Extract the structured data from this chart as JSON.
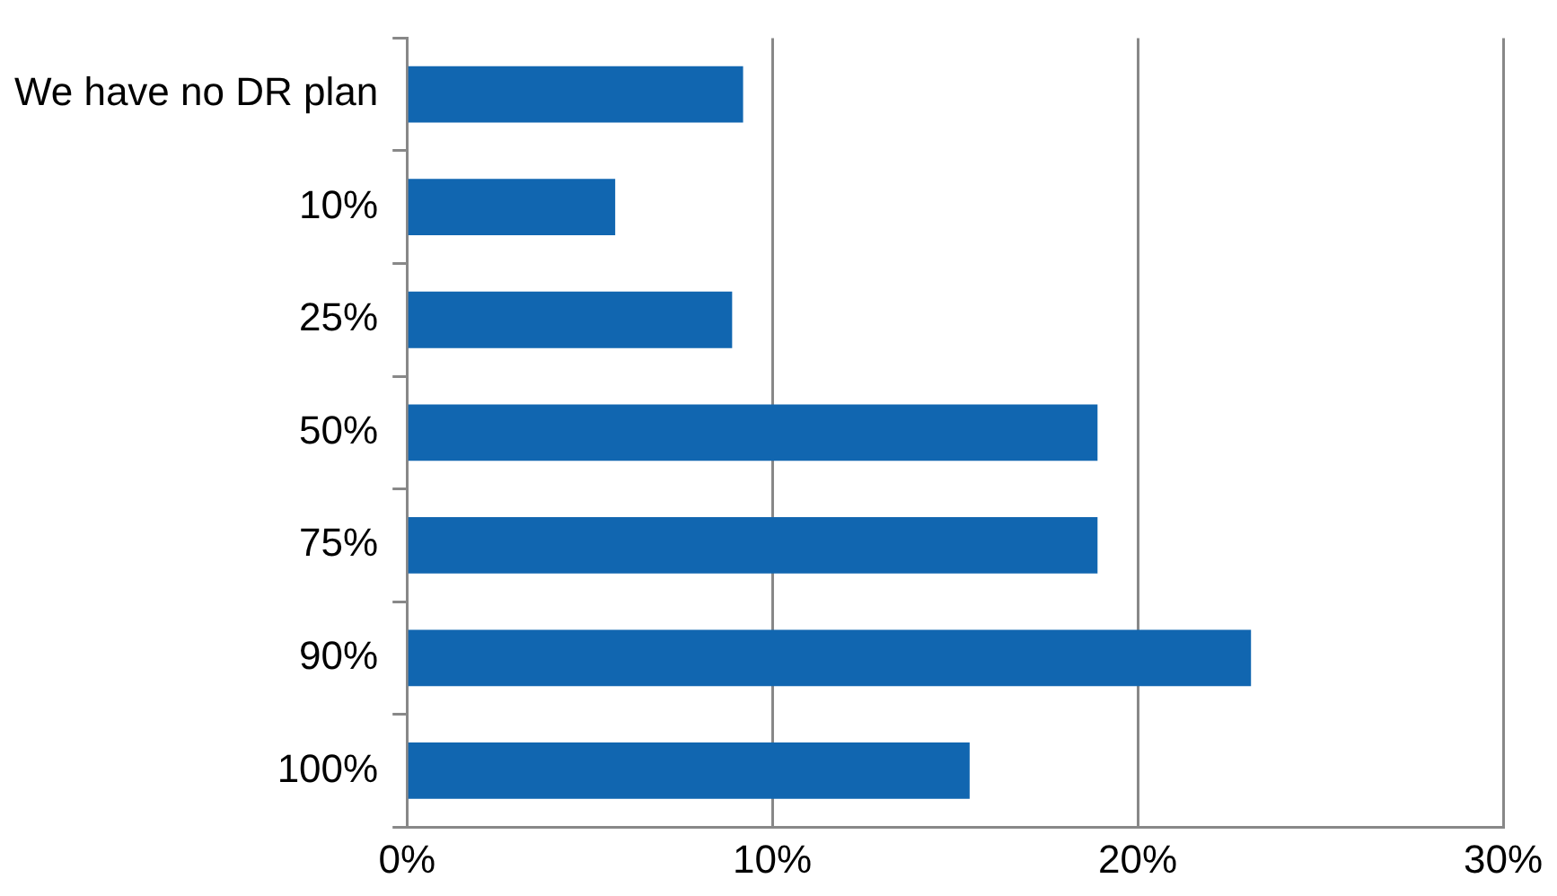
{
  "chart_data": {
    "type": "bar",
    "orientation": "horizontal",
    "categories": [
      "We have no DR plan",
      "10%",
      "25%",
      "50%",
      "75%",
      "90%",
      "100%"
    ],
    "values": [
      9.2,
      5.7,
      8.9,
      18.9,
      18.9,
      23.1,
      15.4
    ],
    "color": "#1166b0",
    "xlim": [
      0,
      30
    ],
    "xticks": [
      {
        "value": 0,
        "label": "0%"
      },
      {
        "value": 10,
        "label": "10%"
      },
      {
        "value": 20,
        "label": "20%"
      },
      {
        "value": 30,
        "label": "30%"
      }
    ],
    "grid": "x",
    "legend": false
  }
}
